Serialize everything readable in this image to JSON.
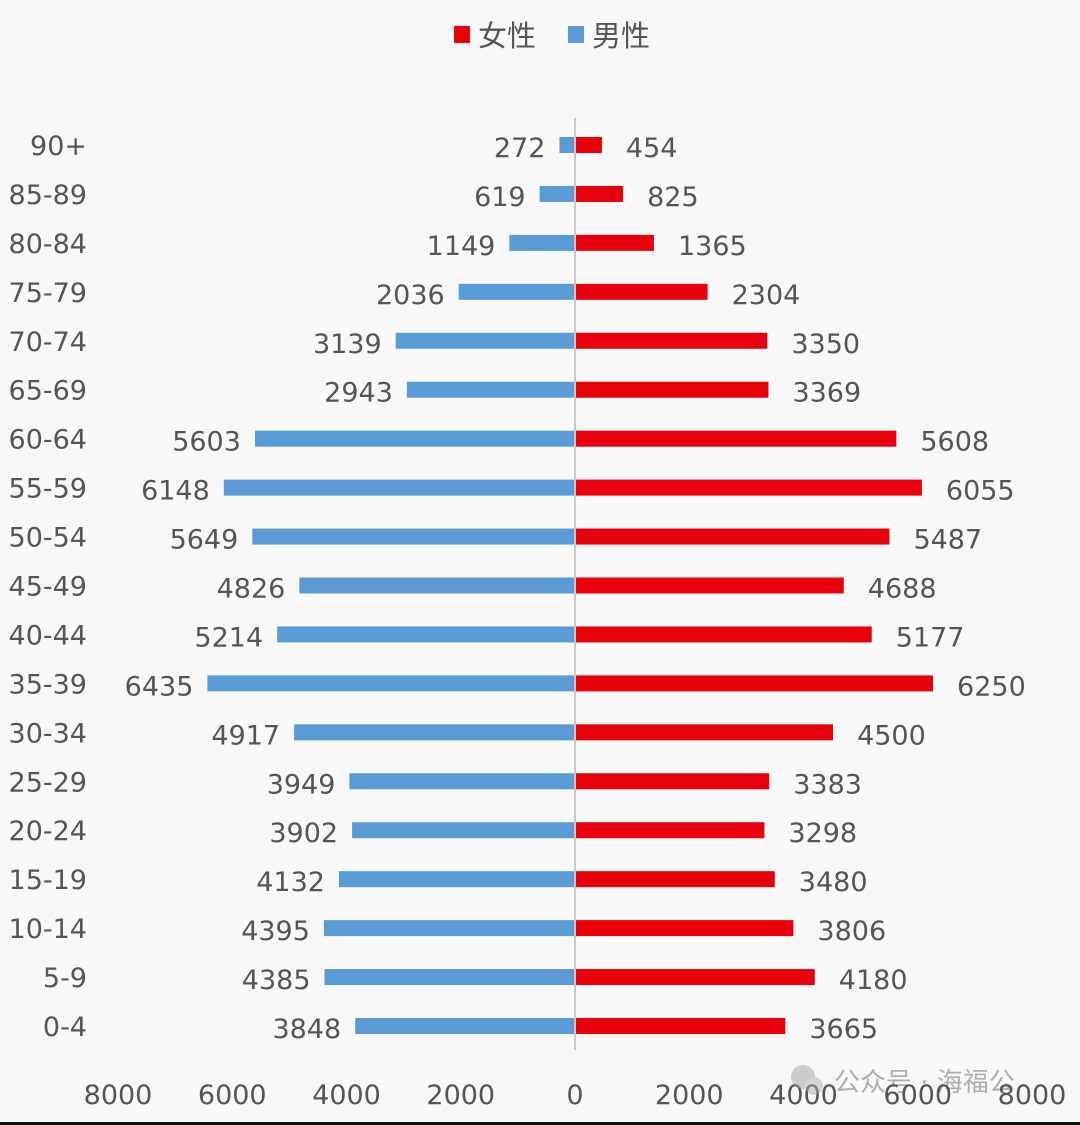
{
  "chart_data": {
    "type": "bar",
    "orientation": "horizontal-diverging",
    "categories": [
      "90+",
      "85-89",
      "80-84",
      "75-79",
      "70-74",
      "65-69",
      "60-64",
      "55-59",
      "50-54",
      "45-49",
      "40-44",
      "35-39",
      "30-34",
      "25-29",
      "20-24",
      "15-19",
      "10-14",
      "5-9",
      "0-4"
    ],
    "series": [
      {
        "name": "女性",
        "color": "#e8000b",
        "side": "right",
        "values": [
          454,
          825,
          1365,
          2304,
          3350,
          3369,
          5608,
          6055,
          5487,
          4688,
          5177,
          6250,
          4500,
          3383,
          3298,
          3480,
          3806,
          4180,
          3665
        ]
      },
      {
        "name": "男性",
        "color": "#5b9bd5",
        "side": "left",
        "values": [
          272,
          619,
          1149,
          2036,
          3139,
          2943,
          5603,
          6148,
          5649,
          4826,
          5214,
          6435,
          4917,
          3949,
          3902,
          4132,
          4395,
          4385,
          3848
        ]
      }
    ],
    "xlim": [
      -8000,
      8000
    ],
    "x_tick_labels": [
      "8000",
      "6000",
      "4000",
      "2000",
      "0",
      "2000",
      "4000",
      "6000",
      "8000"
    ],
    "x_ticks": [
      -8000,
      -6000,
      -4000,
      -2000,
      0,
      2000,
      4000,
      6000,
      8000
    ],
    "legend_position": "top",
    "grid": false,
    "data_labels": true
  },
  "watermark": "公众号 · 海福公"
}
